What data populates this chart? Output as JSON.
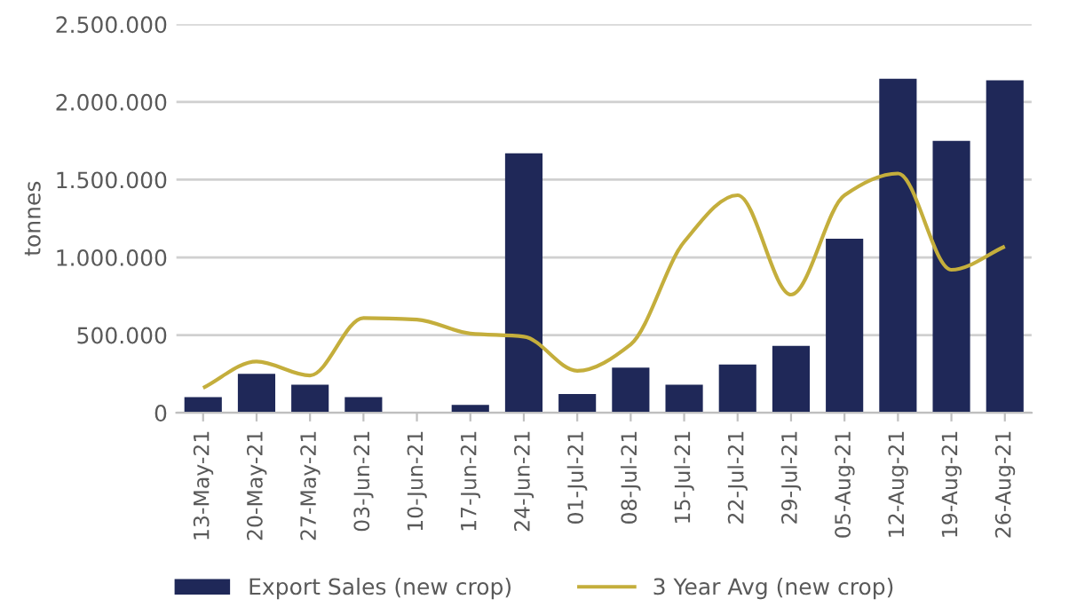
{
  "chart_data": {
    "type": "bar",
    "ylabel": "tonnes",
    "categories": [
      "13-May-21",
      "20-May-21",
      "27-May-21",
      "03-Jun-21",
      "10-Jun-21",
      "17-Jun-21",
      "24-Jun-21",
      "01-Jul-21",
      "08-Jul-21",
      "15-Jul-21",
      "22-Jul-21",
      "29-Jul-21",
      "05-Aug-21",
      "12-Aug-21",
      "19-Aug-21",
      "26-Aug-21"
    ],
    "series": [
      {
        "name": "Export Sales (new crop)",
        "color": "#1f2858",
        "values": [
          100000,
          250000,
          180000,
          100000,
          0,
          50000,
          1670000,
          120000,
          290000,
          180000,
          310000,
          430000,
          1120000,
          2150000,
          1750000,
          2140000
        ]
      },
      {
        "name": "3 Year Avg (new crop)",
        "type": "line",
        "color": "#c4ae3c",
        "values": [
          160000,
          330000,
          240000,
          610000,
          600000,
          510000,
          490000,
          270000,
          440000,
          1100000,
          1400000,
          760000,
          1400000,
          1540000,
          920000,
          1070000
        ]
      }
    ],
    "ylim": [
      0,
      2500000
    ],
    "yticks": [
      {
        "value": 0,
        "label": "0"
      },
      {
        "value": 500000,
        "label": "500.000"
      },
      {
        "value": 1000000,
        "label": "1.000.000"
      },
      {
        "value": 1500000,
        "label": "1.500.000"
      },
      {
        "value": 2000000,
        "label": "2.000.000"
      },
      {
        "value": 2500000,
        "label": "2.500.000"
      }
    ],
    "grid": "y",
    "legend": "bottom",
    "marker": "none",
    "line_style": "solid"
  }
}
